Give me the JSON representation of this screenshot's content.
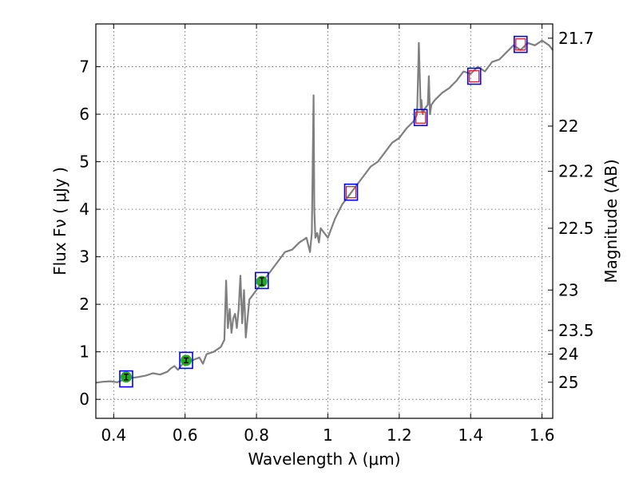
{
  "chart_data": {
    "type": "line",
    "xlabel": "Wavelength  λ (μm)",
    "ylabel": "Flux  Fν  ( μJy )",
    "y2label": "Magnitude (AB)",
    "xlim": [
      0.35,
      1.63
    ],
    "ylim": [
      -0.4,
      7.9
    ],
    "x_ticks": [
      0.4,
      0.6,
      0.8,
      1.0,
      1.2,
      1.4,
      1.6
    ],
    "x_tick_labels": [
      "0.4",
      "0.6",
      "0.8",
      "1",
      "1.2",
      "1.4",
      "1.6"
    ],
    "y_ticks": [
      0,
      1,
      2,
      3,
      4,
      5,
      6,
      7
    ],
    "y_tick_labels": [
      "0",
      "1",
      "2",
      "3",
      "4",
      "5",
      "6",
      "7"
    ],
    "y2_ticks": [
      {
        "label": "21.7",
        "flux": 7.6
      },
      {
        "label": "22",
        "flux": 5.75
      },
      {
        "label": "22.2",
        "flux": 4.8
      },
      {
        "label": "22.5",
        "flux": 3.6
      },
      {
        "label": "23",
        "flux": 2.3
      },
      {
        "label": "23.5",
        "flux": 1.45
      },
      {
        "label": "24",
        "flux": 0.95
      },
      {
        "label": "25",
        "flux": 0.36
      }
    ],
    "grid": true,
    "colors": {
      "spectrum": "#7f7f7f",
      "model_box": "#0000ff",
      "measured": "#22aa22",
      "upper": "#dd2222",
      "grid": "#555555"
    },
    "series": [
      {
        "kind": "spectrum",
        "x": [
          0.35,
          0.37,
          0.39,
          0.41,
          0.43,
          0.45,
          0.47,
          0.49,
          0.51,
          0.53,
          0.55,
          0.56,
          0.57,
          0.58,
          0.59,
          0.6,
          0.62,
          0.64,
          0.65,
          0.66,
          0.68,
          0.7,
          0.71,
          0.715,
          0.72,
          0.725,
          0.73,
          0.735,
          0.74,
          0.745,
          0.75,
          0.755,
          0.76,
          0.765,
          0.77,
          0.78,
          0.8,
          0.82,
          0.84,
          0.86,
          0.88,
          0.9,
          0.92,
          0.94,
          0.95,
          0.955,
          0.96,
          0.962,
          0.965,
          0.97,
          0.975,
          0.98,
          1.0,
          1.02,
          1.04,
          1.06,
          1.08,
          1.1,
          1.12,
          1.14,
          1.16,
          1.18,
          1.2,
          1.22,
          1.24,
          1.25,
          1.255,
          1.26,
          1.262,
          1.265,
          1.27,
          1.28,
          1.283,
          1.286,
          1.29,
          1.3,
          1.32,
          1.34,
          1.36,
          1.38,
          1.4,
          1.42,
          1.44,
          1.46,
          1.48,
          1.5,
          1.52,
          1.54,
          1.56,
          1.58,
          1.6,
          1.62,
          1.63
        ],
        "y": [
          0.35,
          0.37,
          0.38,
          0.36,
          0.42,
          0.45,
          0.47,
          0.5,
          0.55,
          0.52,
          0.58,
          0.65,
          0.7,
          0.62,
          0.72,
          0.8,
          0.82,
          0.88,
          0.75,
          0.95,
          1.0,
          1.1,
          1.25,
          2.5,
          1.5,
          1.9,
          1.4,
          1.7,
          1.8,
          1.5,
          1.9,
          2.6,
          1.6,
          2.3,
          1.3,
          2.1,
          2.3,
          2.5,
          2.7,
          2.9,
          3.1,
          3.15,
          3.3,
          3.4,
          3.1,
          3.5,
          6.4,
          4.0,
          3.4,
          3.5,
          3.3,
          3.6,
          3.4,
          3.8,
          4.1,
          4.3,
          4.5,
          4.7,
          4.9,
          5.0,
          5.2,
          5.4,
          5.5,
          5.7,
          5.85,
          6.0,
          7.5,
          6.1,
          6.3,
          6.0,
          6.1,
          6.2,
          6.8,
          6.0,
          6.2,
          6.3,
          6.45,
          6.55,
          6.7,
          6.9,
          6.85,
          7.0,
          6.9,
          7.1,
          7.15,
          7.3,
          7.45,
          7.35,
          7.5,
          7.45,
          7.55,
          7.45,
          7.35
        ]
      },
      {
        "kind": "model_photometry",
        "x": [
          0.435,
          0.603,
          0.815,
          1.065,
          1.26,
          1.41,
          1.54
        ],
        "y": [
          0.43,
          0.82,
          2.5,
          4.36,
          5.93,
          6.8,
          7.47
        ]
      },
      {
        "kind": "measured_detections",
        "x": [
          0.435,
          0.603,
          0.815
        ],
        "y": [
          0.47,
          0.82,
          2.48
        ],
        "yerr": [
          0.06,
          0.05,
          0.08
        ]
      },
      {
        "kind": "upper_limits",
        "x": [
          1.065,
          1.26,
          1.41,
          1.54
        ],
        "y": [
          4.36,
          5.93,
          6.8,
          7.47
        ]
      }
    ]
  }
}
